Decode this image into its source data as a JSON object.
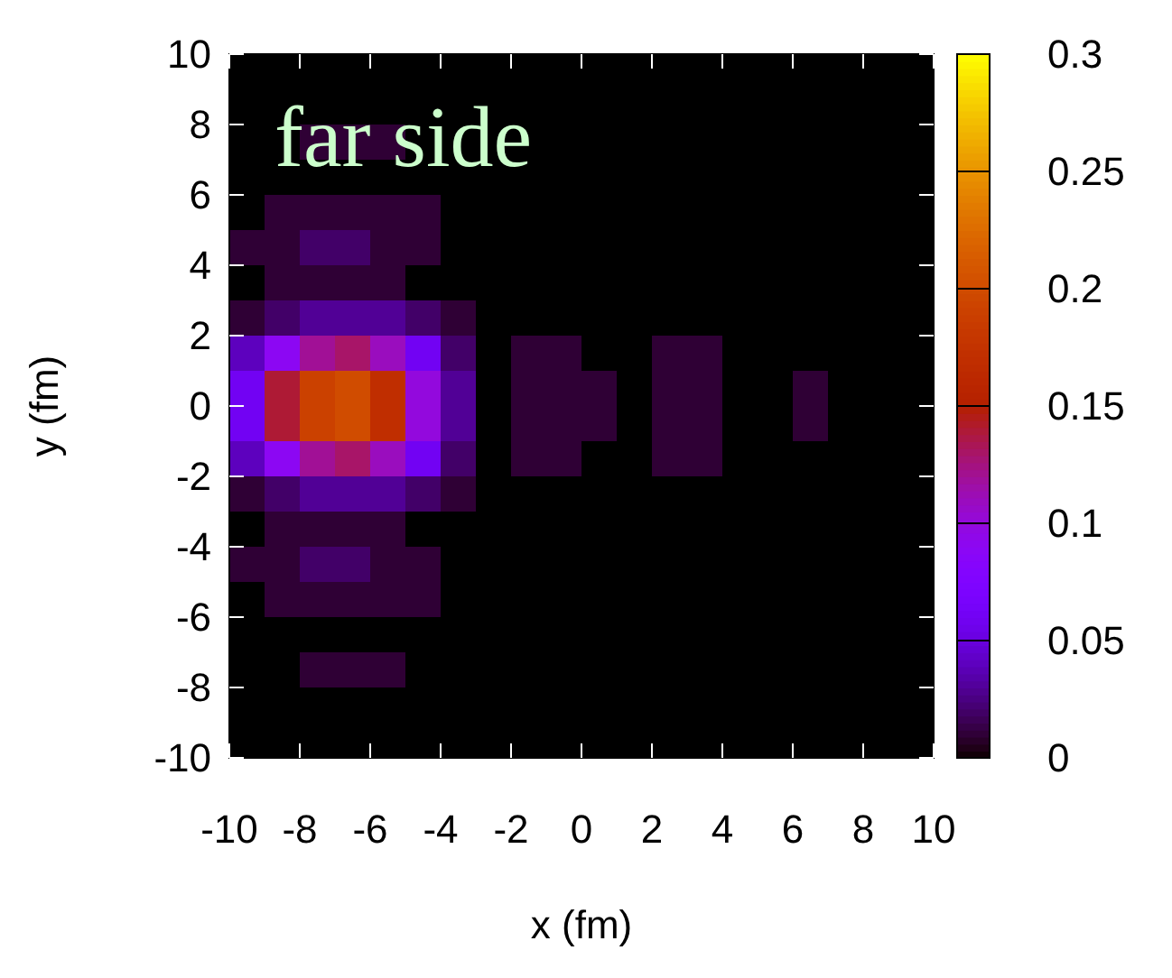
{
  "chart_data": {
    "type": "heatmap",
    "xlabel": "x  (fm)",
    "ylabel": "y  (fm)",
    "annotations": [
      "far side"
    ],
    "xlim": [
      -10,
      10
    ],
    "xticks": [
      -10,
      -8,
      -6,
      -4,
      -2,
      0,
      2,
      4,
      6,
      8,
      10
    ],
    "ylim": [
      -10,
      10
    ],
    "yticks": [
      -10,
      -8,
      -6,
      -4,
      -2,
      0,
      2,
      4,
      6,
      8,
      10
    ],
    "clim": [
      0,
      0.3
    ],
    "cticks": [
      0,
      0.05,
      0.1,
      0.15,
      0.2,
      0.25,
      0.3
    ],
    "cells": [
      [
        0,
        0,
        0,
        0,
        0,
        0,
        0,
        0,
        0,
        0,
        0,
        0,
        0,
        0,
        0,
        0,
        0,
        0,
        0,
        0
      ],
      [
        0,
        0,
        0,
        0,
        0,
        0,
        0,
        0,
        0,
        0,
        0,
        0,
        0,
        0,
        0,
        0,
        0,
        0,
        0,
        0
      ],
      [
        0,
        0,
        0.01,
        0.01,
        0.01,
        0,
        0,
        0,
        0,
        0,
        0,
        0,
        0,
        0,
        0,
        0,
        0,
        0,
        0,
        0
      ],
      [
        0,
        0,
        0,
        0,
        0,
        0,
        0,
        0,
        0,
        0,
        0,
        0,
        0,
        0,
        0,
        0,
        0,
        0,
        0,
        0
      ],
      [
        0,
        0.01,
        0.01,
        0.01,
        0.01,
        0.01,
        0,
        0,
        0,
        0,
        0,
        0,
        0,
        0,
        0,
        0,
        0,
        0,
        0,
        0
      ],
      [
        0.01,
        0.01,
        0.02,
        0.02,
        0.01,
        0.01,
        0,
        0,
        0,
        0,
        0,
        0,
        0,
        0,
        0,
        0,
        0,
        0,
        0,
        0
      ],
      [
        0,
        0.01,
        0.01,
        0.01,
        0.01,
        0,
        0,
        0,
        0,
        0,
        0,
        0,
        0,
        0,
        0,
        0,
        0,
        0,
        0,
        0
      ],
      [
        0.01,
        0.02,
        0.03,
        0.03,
        0.03,
        0.02,
        0.01,
        0,
        0,
        0,
        0,
        0,
        0,
        0,
        0,
        0,
        0,
        0,
        0,
        0
      ],
      [
        0.04,
        0.09,
        0.12,
        0.13,
        0.11,
        0.06,
        0.02,
        0,
        0.01,
        0.01,
        0,
        0,
        0.01,
        0.01,
        0,
        0,
        0,
        0,
        0,
        0
      ],
      [
        0.06,
        0.14,
        0.19,
        0.2,
        0.17,
        0.1,
        0.03,
        0,
        0.01,
        0.01,
        0.01,
        0,
        0.01,
        0.01,
        0,
        0,
        0.01,
        0,
        0,
        0
      ],
      [
        0.06,
        0.14,
        0.19,
        0.2,
        0.17,
        0.1,
        0.03,
        0,
        0.01,
        0.01,
        0.01,
        0,
        0.01,
        0.01,
        0,
        0,
        0.01,
        0,
        0,
        0
      ],
      [
        0.04,
        0.09,
        0.12,
        0.13,
        0.11,
        0.06,
        0.02,
        0,
        0.01,
        0.01,
        0,
        0,
        0.01,
        0.01,
        0,
        0,
        0,
        0,
        0,
        0
      ],
      [
        0.01,
        0.02,
        0.03,
        0.03,
        0.03,
        0.02,
        0.01,
        0,
        0,
        0,
        0,
        0,
        0,
        0,
        0,
        0,
        0,
        0,
        0,
        0
      ],
      [
        0,
        0.01,
        0.01,
        0.01,
        0.01,
        0,
        0,
        0,
        0,
        0,
        0,
        0,
        0,
        0,
        0,
        0,
        0,
        0,
        0,
        0
      ],
      [
        0.01,
        0.01,
        0.02,
        0.02,
        0.01,
        0.01,
        0,
        0,
        0,
        0,
        0,
        0,
        0,
        0,
        0,
        0,
        0,
        0,
        0,
        0
      ],
      [
        0,
        0.01,
        0.01,
        0.01,
        0.01,
        0.01,
        0,
        0,
        0,
        0,
        0,
        0,
        0,
        0,
        0,
        0,
        0,
        0,
        0,
        0
      ],
      [
        0,
        0,
        0,
        0,
        0,
        0,
        0,
        0,
        0,
        0,
        0,
        0,
        0,
        0,
        0,
        0,
        0,
        0,
        0,
        0
      ],
      [
        0,
        0,
        0.01,
        0.01,
        0.01,
        0,
        0,
        0,
        0,
        0,
        0,
        0,
        0,
        0,
        0,
        0,
        0,
        0,
        0,
        0
      ],
      [
        0,
        0,
        0,
        0,
        0,
        0,
        0,
        0,
        0,
        0,
        0,
        0,
        0,
        0,
        0,
        0,
        0,
        0,
        0,
        0
      ],
      [
        0,
        0,
        0,
        0,
        0,
        0,
        0,
        0,
        0,
        0,
        0,
        0,
        0,
        0,
        0,
        0,
        0,
        0,
        0,
        0
      ]
    ]
  }
}
